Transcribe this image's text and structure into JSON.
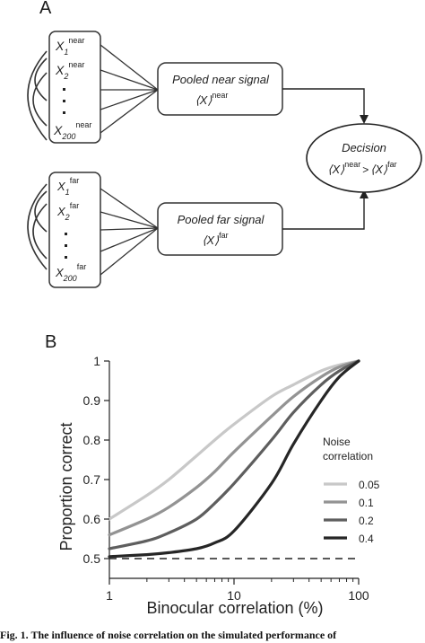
{
  "panel_a": {
    "letter": "A",
    "near": {
      "x1_base": "X",
      "x1_sub": "1",
      "x1_sup": "near",
      "x2_base": "X",
      "x2_sub": "2",
      "x2_sup": "near",
      "xn_base": "X",
      "xn_sub": "200",
      "xn_sup": "near",
      "pool_title": "Pooled near signal",
      "pool_base": "⟨X⟩",
      "pool_sup": "near"
    },
    "far": {
      "x1_base": "X",
      "x1_sub": "1",
      "x1_sup": "far",
      "x2_base": "X",
      "x2_sub": "2",
      "x2_sup": "far",
      "xn_base": "X",
      "xn_sub": "200",
      "xn_sup": "far",
      "pool_title": "Pooled far signal",
      "pool_base": "⟨X⟩",
      "pool_sup": "far"
    },
    "decision": {
      "title": "Decision",
      "left_base": "⟨X⟩",
      "left_sup": "near",
      "op": ">",
      "right_base": "⟨X⟩",
      "right_sup": "far"
    }
  },
  "panel_b": {
    "letter": "B",
    "legend_title_line1": "Noise",
    "legend_title_line2": "correlation",
    "y_ticks": [
      "0.5",
      "0.6",
      "0.7",
      "0.8",
      "0.9",
      "1"
    ],
    "x_ticks": [
      "1",
      "10",
      "100"
    ]
  },
  "chart_data": {
    "type": "line",
    "xlabel": "Binocular correlation (%)",
    "ylabel": "Proportion correct",
    "xscale": "log",
    "xlim": [
      1,
      100
    ],
    "ylim": [
      0.45,
      1.0
    ],
    "grid": false,
    "legend": "right",
    "reference_line": {
      "y": 0.5,
      "style": "dashed"
    },
    "x": [
      1,
      2,
      3,
      5,
      7,
      10,
      20,
      30,
      50,
      70,
      100
    ],
    "series": [
      {
        "name": "0.05",
        "color": "#c8c8c8",
        "values": [
          0.6,
          0.66,
          0.7,
          0.76,
          0.8,
          0.84,
          0.91,
          0.94,
          0.975,
          0.99,
          1.0
        ]
      },
      {
        "name": "0.1",
        "color": "#939393",
        "values": [
          0.56,
          0.6,
          0.63,
          0.68,
          0.72,
          0.77,
          0.86,
          0.91,
          0.96,
          0.985,
          1.0
        ]
      },
      {
        "name": "0.2",
        "color": "#5e5e5e",
        "values": [
          0.525,
          0.545,
          0.565,
          0.6,
          0.64,
          0.69,
          0.8,
          0.87,
          0.94,
          0.975,
          1.0
        ]
      },
      {
        "name": "0.4",
        "color": "#262626",
        "values": [
          0.505,
          0.51,
          0.515,
          0.525,
          0.54,
          0.57,
          0.69,
          0.79,
          0.9,
          0.96,
          1.0
        ]
      }
    ]
  },
  "caption": "Fig. 1. The influence of noise correlation on the simulated performance of"
}
